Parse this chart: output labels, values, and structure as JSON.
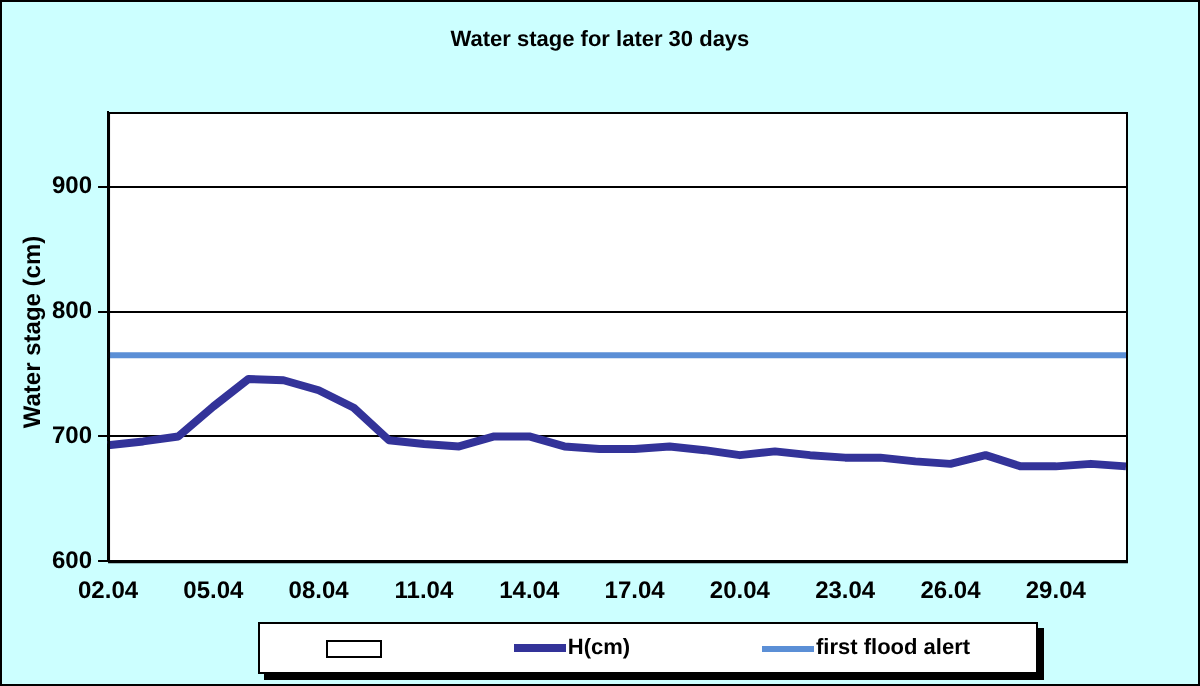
{
  "chart_data": {
    "type": "line",
    "title": "Water stage for later 30 days",
    "ylabel": "Water stage (cm)",
    "categories": [
      "02.04",
      null,
      null,
      "05.04",
      null,
      null,
      "08.04",
      null,
      null,
      "11.04",
      null,
      null,
      "14.04",
      null,
      null,
      "17.04",
      null,
      null,
      "20.04",
      null,
      null,
      "23.04",
      null,
      null,
      "26.04",
      null,
      null,
      "29.04",
      null,
      null
    ],
    "series": [
      {
        "name": "H(cm)",
        "color": "#333399",
        "values": [
          693,
          696,
          700,
          724,
          746,
          745,
          737,
          723,
          697,
          694,
          692,
          700,
          700,
          692,
          690,
          690,
          692,
          689,
          685,
          688,
          685,
          683,
          683,
          680,
          678,
          685,
          676,
          676,
          678,
          676
        ]
      }
    ],
    "ref_lines": [
      {
        "axis": "y",
        "value": 765,
        "label": "first flood alert",
        "color": "#5b8fd6"
      }
    ],
    "ylim": [
      600,
      960
    ],
    "yticks": [
      600,
      700,
      800,
      900
    ],
    "grid": "y",
    "legend": "bottom",
    "marker": "none",
    "line_style": "solid"
  }
}
